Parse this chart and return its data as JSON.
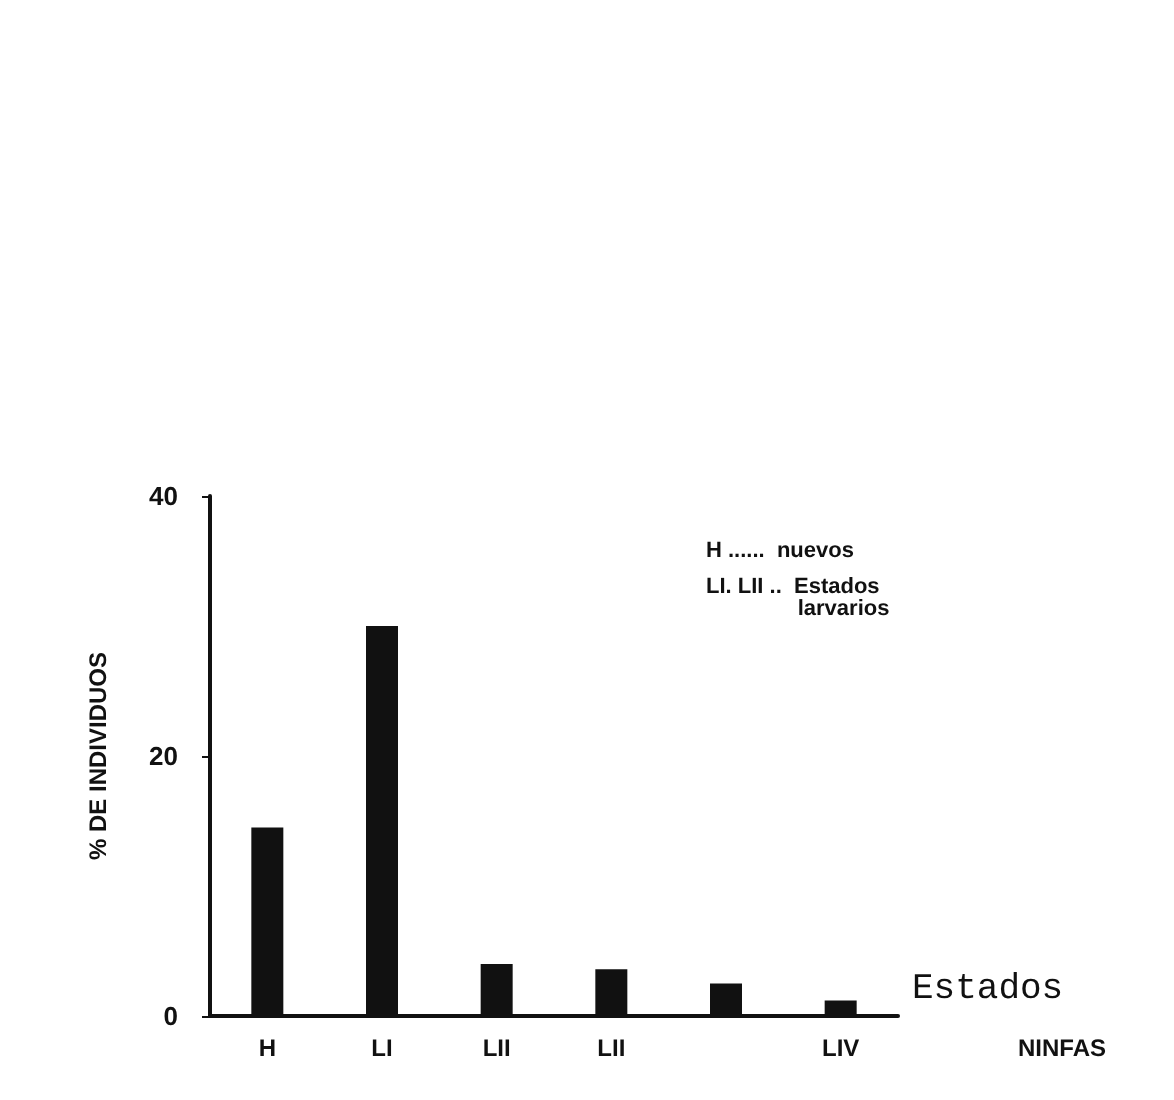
{
  "chart_data": {
    "type": "bar",
    "categories": [
      "H",
      "LI",
      "LII",
      "LII",
      null,
      "LIV"
    ],
    "values": [
      14.5,
      30,
      4,
      3.6,
      2.5,
      1.2
    ],
    "color": "#111111",
    "ylim": [
      0,
      40
    ],
    "yticks": [
      0,
      20,
      40
    ],
    "ylabel": "% DE INDIVIDUOS",
    "xlabel": "NINFAS",
    "grid": false,
    "annotations": [
      "H ......  nuevos",
      "LI. LII ..  Estados\n               larvarios",
      "Estados"
    ]
  }
}
